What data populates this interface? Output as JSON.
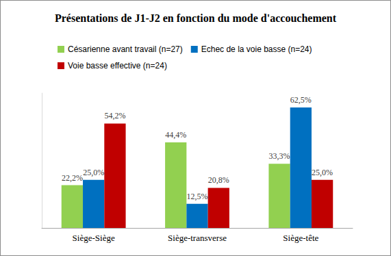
{
  "chart_data": {
    "type": "bar",
    "title": "Présentations de J1-J2 en fonction du mode d'accouchement",
    "categories": [
      "Siège-Siège",
      "Siège-transverse",
      "Siège-tête"
    ],
    "series": [
      {
        "name": "Césarienne avant travail (n=27)",
        "color": "#92d050",
        "values": [
          22.2,
          44.4,
          33.3
        ],
        "value_labels": [
          "22,2%",
          "44,4%",
          "33,3%"
        ]
      },
      {
        "name": "Echec de la voie basse (n=24)",
        "color": "#0070c0",
        "values": [
          25.0,
          12.5,
          62.5
        ],
        "value_labels": [
          "25,0%",
          "12,5%",
          "62,5%"
        ]
      },
      {
        "name": "Voie basse effective (n=24)",
        "color": "#c00000",
        "values": [
          54.2,
          20.8,
          25.0
        ],
        "value_labels": [
          "54,2%",
          "20,8%",
          "25,0%"
        ]
      }
    ],
    "ylim": [
      0,
      70
    ],
    "grid": false,
    "legend": "top",
    "data_labels": true,
    "tick_labels": "x"
  }
}
